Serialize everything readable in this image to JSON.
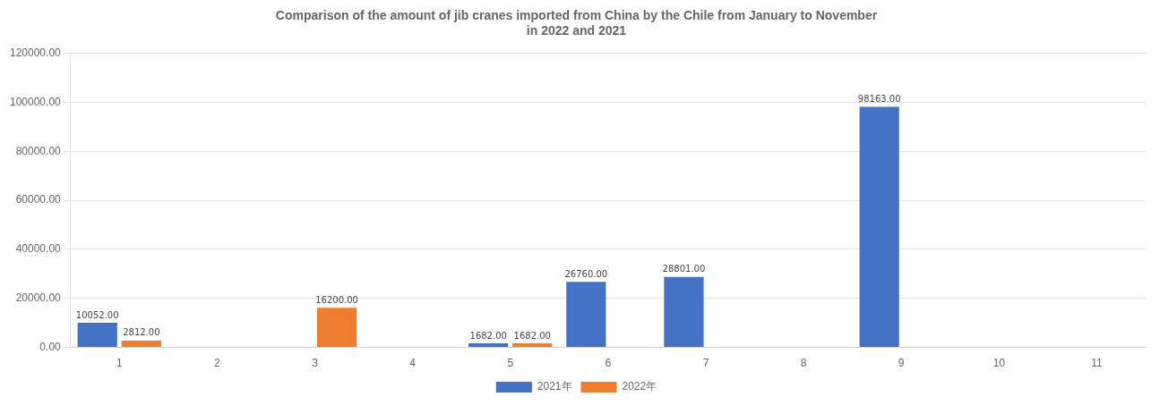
{
  "chart_data": {
    "type": "bar",
    "title": "Comparison of the amount of jib cranes imported from China by the Chile from January to November\nin 2022 and 2021",
    "categories": [
      "1",
      "2",
      "3",
      "4",
      "5",
      "6",
      "7",
      "8",
      "9",
      "10",
      "11"
    ],
    "series": [
      {
        "name": "2021年",
        "color": "#4472C4",
        "values": [
          10052.0,
          0,
          0,
          0,
          1682.0,
          26760.0,
          28801.0,
          0,
          98163.0,
          0,
          0
        ],
        "value_labels": [
          "10052.00",
          null,
          null,
          null,
          "1682.00",
          "26760.00",
          "28801.00",
          null,
          "98163.00",
          null,
          null
        ]
      },
      {
        "name": "2022年",
        "color": "#ED7D31",
        "values": [
          2812.0,
          0,
          16200.0,
          0,
          1682.0,
          0,
          0,
          0,
          0,
          0,
          0
        ],
        "value_labels": [
          "2812.00",
          null,
          "16200.00",
          null,
          "1682.00",
          null,
          null,
          null,
          null,
          null,
          null
        ]
      }
    ],
    "ylim": [
      0,
      120000
    ],
    "yticks": [
      {
        "value": 0,
        "label": "0.00"
      },
      {
        "value": 20000,
        "label": "20000.00"
      },
      {
        "value": 40000,
        "label": "40000.00"
      },
      {
        "value": 60000,
        "label": "60000.00"
      },
      {
        "value": 80000,
        "label": "80000.00"
      },
      {
        "value": 100000,
        "label": "100000.00"
      },
      {
        "value": 120000,
        "label": "120000.00"
      }
    ],
    "grid": true,
    "legend": "bottom",
    "data_labels": true
  }
}
